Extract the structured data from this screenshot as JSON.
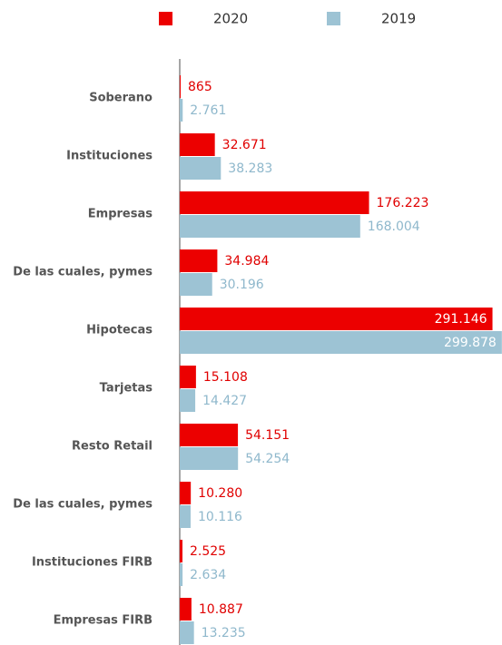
{
  "chart_data": {
    "type": "bar",
    "orientation": "horizontal",
    "categories": [
      "Soberano",
      "Instituciones",
      "Empresas",
      "De las cuales, pymes",
      "Hipotecas",
      "Tarjetas",
      "Resto Retail",
      "De las cuales, pymes",
      "Instituciones FIRB",
      "Empresas FIRB"
    ],
    "series": [
      {
        "name": "2020",
        "color": "#ec0000",
        "values": [
          865,
          32671,
          176223,
          34984,
          291146,
          15108,
          54151,
          10280,
          2525,
          10887
        ],
        "value_labels": [
          "865",
          "32.671",
          "176.223",
          "34.984",
          "291.146",
          "15.108",
          "54.151",
          "10.280",
          "2.525",
          "10.887"
        ]
      },
      {
        "name": "2019",
        "color": "#9dc3d4",
        "values": [
          2761,
          38283,
          168004,
          30196,
          299878,
          14427,
          54254,
          10116,
          2634,
          13235
        ],
        "value_labels": [
          "2.761",
          "38.283",
          "168.004",
          "30.196",
          "299.878",
          "14.427",
          "54.254",
          "10.116",
          "2.634",
          "13.235"
        ]
      }
    ],
    "xlim": [
      0,
      300000
    ],
    "legend": "top"
  }
}
